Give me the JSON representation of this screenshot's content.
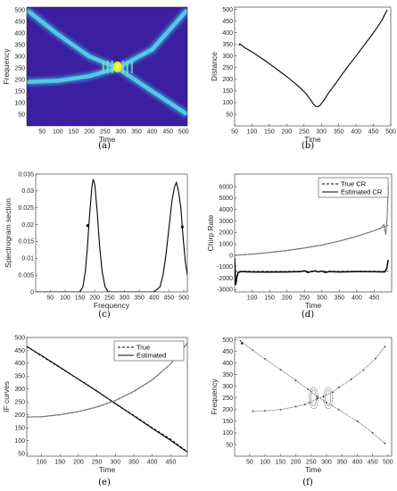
{
  "chart_data": [
    {
      "id": "a",
      "type": "heatmap",
      "caption": "(a)",
      "xlabel": "Time",
      "ylabel": "Frequency",
      "xlim": [
        1,
        512
      ],
      "ylim": [
        1,
        512
      ],
      "xticks": [
        50,
        100,
        150,
        200,
        250,
        300,
        350,
        400,
        450,
        500
      ],
      "yticks": [
        50,
        100,
        150,
        200,
        250,
        300,
        350,
        400,
        450,
        500
      ],
      "colors": {
        "background": "#3b1fa0",
        "ridge": "#38c0e6",
        "peak": "#f2e81e"
      },
      "ridges": [
        {
          "t": [
            1,
            100,
            200,
            290,
            400,
            512
          ],
          "f": [
            500,
            395,
            300,
            250,
            150,
            50
          ]
        },
        {
          "t": [
            1,
            100,
            200,
            290,
            400,
            512
          ],
          "f": [
            190,
            195,
            215,
            250,
            330,
            500
          ]
        }
      ],
      "peak": {
        "t": 290,
        "f": 255
      }
    },
    {
      "id": "b",
      "type": "line",
      "caption": "(b)",
      "xlabel": "Time",
      "ylabel": "Distance",
      "xlim": [
        50,
        500
      ],
      "ylim": [
        0,
        510
      ],
      "xticks": [
        50,
        100,
        150,
        200,
        250,
        300,
        350,
        400,
        450,
        500
      ],
      "yticks": [
        50,
        100,
        150,
        200,
        250,
        300,
        350,
        400,
        450,
        500
      ],
      "series": [
        {
          "color": "#000000",
          "x": [
            62,
            65,
            80,
            100,
            120,
            140,
            160,
            180,
            200,
            220,
            240,
            255,
            265,
            272,
            278,
            284,
            290,
            296,
            302,
            310,
            320,
            340,
            360,
            380,
            400,
            420,
            440,
            460,
            475,
            485,
            490
          ],
          "y": [
            345,
            352,
            335,
            318,
            298,
            278,
            256,
            234,
            212,
            188,
            162,
            140,
            120,
            105,
            92,
            84,
            82,
            88,
            100,
            115,
            140,
            180,
            222,
            262,
            300,
            340,
            380,
            420,
            455,
            485,
            498
          ]
        }
      ]
    },
    {
      "id": "c",
      "type": "line",
      "caption": "(c)",
      "xlabel": "Frequency",
      "ylabel": "Spectrogram section",
      "xlim": [
        1,
        512
      ],
      "ylim": [
        0,
        0.035
      ],
      "xticks": [
        50,
        100,
        150,
        200,
        250,
        300,
        350,
        400,
        450,
        500
      ],
      "yticks": [
        0,
        0.005,
        0.01,
        0.015,
        0.02,
        0.025,
        0.03,
        0.035
      ],
      "series": [
        {
          "color": "#000000",
          "x": [
            1,
            150,
            160,
            168,
            175,
            182,
            190,
            195,
            200,
            208,
            216,
            225,
            235,
            245,
            400,
            420,
            430,
            440,
            450,
            460,
            468,
            475,
            482,
            490,
            498,
            505,
            512
          ],
          "y": [
            0,
            0,
            0.0015,
            0.006,
            0.013,
            0.022,
            0.031,
            0.0335,
            0.032,
            0.024,
            0.014,
            0.006,
            0.0015,
            0,
            0,
            0.0015,
            0.005,
            0.011,
            0.019,
            0.027,
            0.031,
            0.0325,
            0.03,
            0.025,
            0.016,
            0.009,
            0.005
          ]
        }
      ],
      "markers": [
        {
          "x": 176,
          "y": 0.0197
        },
        {
          "x": 495,
          "y": 0.0193
        }
      ]
    },
    {
      "id": "d",
      "type": "line",
      "caption": "(d)",
      "xlabel": "Time",
      "ylabel": "Chirp Rate",
      "xlim": [
        50,
        500
      ],
      "ylim": [
        -3200,
        7100
      ],
      "xticks": [
        100,
        150,
        200,
        250,
        300,
        350,
        400,
        450
      ],
      "yticks": [
        -3000,
        -2000,
        -1000,
        0,
        1000,
        2000,
        3000,
        4000,
        5000,
        6000
      ],
      "legend": {
        "position": "top-right",
        "entries": [
          "True CR",
          "Estimated CR"
        ]
      },
      "series": [
        {
          "name": "True CR",
          "color": "#555555",
          "dash": true,
          "x": [
            50,
            100,
            150,
            200,
            250,
            300,
            350,
            400,
            450,
            480,
            490
          ],
          "y": [
            0,
            100,
            250,
            420,
            640,
            900,
            1250,
            1650,
            2150,
            2500,
            2650
          ]
        },
        {
          "name": "True CR",
          "color": "#555555",
          "dash": true,
          "x": [
            50,
            100,
            150,
            200,
            250,
            300,
            350,
            400,
            450,
            480,
            490
          ],
          "y": [
            -1400,
            -1400,
            -1400,
            -1400,
            -1400,
            -1400,
            -1400,
            -1400,
            -1400,
            -1400,
            -1400
          ]
        },
        {
          "name": "Estimated CR",
          "color": "#777777",
          "dash": false,
          "x": [
            50,
            100,
            150,
            200,
            250,
            300,
            350,
            400,
            450,
            470,
            478,
            483,
            487,
            490
          ],
          "y": [
            0,
            100,
            250,
            420,
            640,
            900,
            1250,
            1650,
            2150,
            2400,
            2700,
            1800,
            3200,
            6000
          ]
        },
        {
          "name": "Estimated CR",
          "color": "#000000",
          "dash": false,
          "x": [
            50,
            53,
            56,
            60,
            70,
            100,
            150,
            200,
            240,
            250,
            260,
            270,
            280,
            290,
            300,
            310,
            320,
            350,
            400,
            450,
            480,
            486,
            490
          ],
          "y": [
            -200,
            -2600,
            -2000,
            -1500,
            -1420,
            -1450,
            -1460,
            -1450,
            -1430,
            -1350,
            -1500,
            -1420,
            -1370,
            -1450,
            -1380,
            -1500,
            -1430,
            -1450,
            -1430,
            -1440,
            -1450,
            -1150,
            -400
          ]
        }
      ]
    },
    {
      "id": "e",
      "type": "line",
      "caption": "(e)",
      "xlabel": "Time",
      "ylabel": "IF curves",
      "xlim": [
        60,
        495
      ],
      "ylim": [
        40,
        500
      ],
      "xticks": [
        100,
        150,
        200,
        250,
        300,
        350,
        400,
        450
      ],
      "yticks": [
        50,
        100,
        150,
        200,
        250,
        300,
        350,
        400,
        450,
        500
      ],
      "legend": {
        "position": "top-right",
        "entries": [
          "True",
          "Estimated"
        ]
      },
      "series": [
        {
          "name": "True",
          "color": "#000000",
          "dash": true,
          "x": [
            60,
            100,
            150,
            200,
            250,
            300,
            350,
            400,
            450,
            495
          ],
          "y": [
            465,
            428,
            383,
            338,
            293,
            243,
            198,
            150,
            105,
            57
          ]
        },
        {
          "name": "Estimated",
          "color": "#000000",
          "dash": false,
          "x": [
            60,
            100,
            150,
            200,
            250,
            300,
            350,
            400,
            450,
            495
          ],
          "y": [
            465,
            430,
            385,
            338,
            292,
            244,
            196,
            148,
            101,
            56
          ]
        },
        {
          "name": "True",
          "color": "#777777",
          "dash": true,
          "x": [
            60,
            100,
            150,
            200,
            250,
            300,
            350,
            400,
            450,
            495
          ],
          "y": [
            192,
            193,
            200,
            212,
            230,
            255,
            290,
            335,
            398,
            478
          ]
        },
        {
          "name": "Estimated",
          "color": "#777777",
          "dash": false,
          "x": [
            60,
            100,
            150,
            200,
            250,
            300,
            350,
            400,
            450,
            495
          ],
          "y": [
            192,
            193,
            201,
            213,
            231,
            256,
            291,
            336,
            398,
            478
          ]
        }
      ]
    },
    {
      "id": "f",
      "type": "scatter",
      "caption": "(f)",
      "xlabel": "Time",
      "ylabel": "Frequency",
      "xlim": [
        1,
        512
      ],
      "ylim": [
        0,
        510
      ],
      "xticks": [
        50,
        100,
        150,
        200,
        250,
        300,
        350,
        400,
        450,
        500
      ],
      "yticks": [
        50,
        100,
        150,
        200,
        250,
        300,
        350,
        400,
        450,
        500
      ],
      "series": [
        {
          "color": "#333333",
          "x": [
            20,
            60,
            100,
            150,
            200,
            240,
            270,
            300,
            340,
            400,
            450,
            490
          ],
          "y": [
            495,
            455,
            418,
            372,
            325,
            287,
            255,
            230,
            200,
            150,
            100,
            55
          ]
        },
        {
          "color": "#333333",
          "x": [
            60,
            100,
            150,
            200,
            230,
            245,
            270,
            290,
            320,
            340,
            380,
            420,
            460,
            490
          ],
          "y": [
            193,
            195,
            200,
            213,
            222,
            230,
            247,
            256,
            275,
            295,
            330,
            370,
            420,
            470
          ]
        }
      ],
      "rings": [
        {
          "x": 258,
          "y": 250
        },
        {
          "x": 305,
          "y": 250
        }
      ],
      "isolated_point": {
        "x": 25,
        "y": 485
      }
    }
  ]
}
